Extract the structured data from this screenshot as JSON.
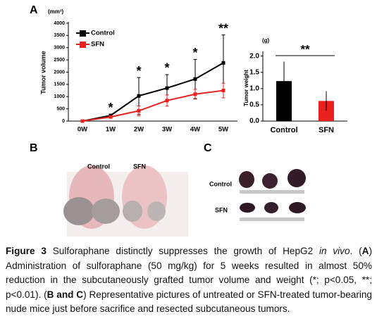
{
  "panels": {
    "a": "A",
    "b": "B",
    "c": "C"
  },
  "chart_data": [
    {
      "type": "line",
      "y_label": "Tumor volume",
      "y_unit": "(mm³)",
      "categories": [
        "0W",
        "1W",
        "2W",
        "3W",
        "4W",
        "5W"
      ],
      "series": [
        {
          "name": "Control",
          "color": "#000000",
          "values": [
            0,
            230,
            1030,
            1350,
            1720,
            2380
          ],
          "errors": [
            0,
            50,
            750,
            550,
            800,
            1140
          ]
        },
        {
          "name": "SFN",
          "color": "#e8201f",
          "values": [
            0,
            170,
            420,
            840,
            1100,
            1250
          ],
          "errors": [
            0,
            40,
            200,
            230,
            200,
            300
          ]
        }
      ],
      "significance": [
        null,
        "*",
        "*",
        "*",
        "*",
        "**"
      ],
      "ylim": [
        0,
        4000
      ],
      "yticks": [
        0,
        500,
        1000,
        1500,
        2000,
        2500,
        3000,
        3500,
        4000
      ],
      "legend": "upper-left"
    },
    {
      "type": "bar",
      "y_label": "Tumor weight",
      "y_unit": "(g)",
      "categories": [
        "Control",
        "SFN"
      ],
      "values": [
        1.23,
        0.62
      ],
      "errors": [
        0.6,
        0.3
      ],
      "colors": [
        "#000000",
        "#e8201f"
      ],
      "significance": "**",
      "ylim": [
        0,
        2.1
      ],
      "yticks": [
        {
          "value": 0,
          "label": "0.0"
        },
        0.5,
        {
          "value": 1,
          "label": "1.0"
        },
        1.5,
        {
          "value": 2,
          "label": "2.0"
        }
      ]
    }
  ],
  "photos": {
    "b_labels": [
      "Control",
      "SFN"
    ],
    "c_labels": [
      "Control",
      "SFN"
    ]
  },
  "caption": {
    "segments": [
      {
        "text": "Figure 3",
        "style": "bold"
      },
      {
        "text": " Sulforaphane distinctly suppresses the growth of HepG2 "
      },
      {
        "text": "in vivo",
        "style": "italic"
      },
      {
        "text": ". ("
      },
      {
        "text": "A",
        "style": "bold"
      },
      {
        "text": ") Administration of sulforaphane (50 mg/kg) for 5 weeks resulted in almost 50% reduction in the subcutaneously grafted tumor volume and weight (*; p<0.05, **; p<0.01). ("
      },
      {
        "text": "B and C",
        "style": "bold"
      },
      {
        "text": ") Representative pictures of untreated or SFN-treated tumor-bearing nude mice just before sacrifice and resected subcutaneous tumors."
      }
    ]
  }
}
